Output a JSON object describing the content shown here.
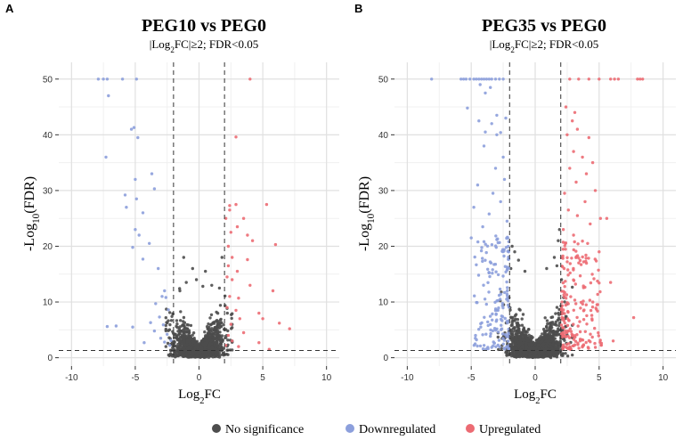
{
  "legend": {
    "items": [
      {
        "label": "No significance",
        "color": "#4d4d4d"
      },
      {
        "label": "Downregulated",
        "color": "#8c9fdc"
      },
      {
        "label": "Upregulated",
        "color": "#ec6b73"
      }
    ]
  },
  "chart_data": [
    {
      "type": "scatter",
      "panel_letter": "A",
      "title": "PEG10 vs PEG0",
      "subtitle": "|Log2FC|≥2; FDR<0.05",
      "xlabel": "Log2FC",
      "ylabel": "-Log10(FDR)",
      "xlim": [
        -11,
        11
      ],
      "ylim": [
        -1.5,
        53
      ],
      "xticks": [
        -10,
        -5,
        0,
        5,
        10
      ],
      "yticks": [
        0,
        10,
        20,
        30,
        40,
        50
      ],
      "thresholds": {
        "log2fc": [
          -2,
          2
        ],
        "neg_log10_fdr": 1.3
      },
      "grid": true,
      "series": [
        {
          "name": "Downregulated",
          "color": "#8c9fdc",
          "points": [
            [
              -7.9,
              50
            ],
            [
              -7.5,
              50
            ],
            [
              -7.2,
              50
            ],
            [
              -6,
              50
            ],
            [
              -4.9,
              50
            ],
            [
              -7.1,
              47
            ],
            [
              -5.1,
              41.3
            ],
            [
              -5.3,
              41
            ],
            [
              -4.8,
              39.5
            ],
            [
              -7.3,
              36
            ],
            [
              -3.7,
              33
            ],
            [
              -5,
              32
            ],
            [
              -3.5,
              30.3
            ],
            [
              -5.8,
              29.2
            ],
            [
              -4.9,
              28.5
            ],
            [
              -5.7,
              27
            ],
            [
              -4.4,
              26
            ],
            [
              -5,
              23
            ],
            [
              -4.7,
              22
            ],
            [
              -3.9,
              20.5
            ],
            [
              -5.2,
              19.8
            ],
            [
              -4.4,
              17.7
            ],
            [
              -3.2,
              16
            ],
            [
              -2.7,
              12
            ],
            [
              -2.9,
              11
            ],
            [
              -2.6,
              10.8
            ],
            [
              -3.4,
              9.7
            ],
            [
              -2.4,
              8.6
            ],
            [
              -3.1,
              7.3
            ],
            [
              -3.8,
              6.3
            ],
            [
              -2.8,
              5.9
            ],
            [
              -5.2,
              5.5
            ],
            [
              -7.2,
              5.6
            ],
            [
              -6.5,
              5.7
            ],
            [
              -3.5,
              4.8
            ],
            [
              -2.5,
              4.2
            ],
            [
              -3,
              3.5
            ],
            [
              -2.2,
              3.1
            ],
            [
              -2.7,
              2.8
            ],
            [
              -4.3,
              2.7
            ],
            [
              -2.3,
              2.2
            ]
          ]
        },
        {
          "name": "Upregulated",
          "color": "#ec6b73",
          "points": [
            [
              4,
              50
            ],
            [
              2.9,
              39.6
            ],
            [
              2.4,
              27.3
            ],
            [
              2.9,
              27.5
            ],
            [
              2.4,
              26.5
            ],
            [
              5.3,
              27.5
            ],
            [
              3.5,
              25
            ],
            [
              2.1,
              25
            ],
            [
              3,
              23.5
            ],
            [
              2.5,
              22.5
            ],
            [
              3.8,
              22
            ],
            [
              4.2,
              21
            ],
            [
              6,
              20.3
            ],
            [
              2.3,
              20
            ],
            [
              2.6,
              18
            ],
            [
              3.8,
              17.6
            ],
            [
              2.3,
              16.5
            ],
            [
              3,
              15.5
            ],
            [
              2.2,
              14.5
            ],
            [
              2.6,
              14
            ],
            [
              4,
              13
            ],
            [
              5.8,
              12
            ],
            [
              3.1,
              10.7
            ],
            [
              2.4,
              11
            ],
            [
              2.9,
              8.5
            ],
            [
              2.2,
              9
            ],
            [
              4.7,
              8
            ],
            [
              3.2,
              7
            ],
            [
              5,
              7
            ],
            [
              2.5,
              6
            ],
            [
              6.3,
              6.2
            ],
            [
              7.1,
              5.2
            ],
            [
              3.5,
              4.5
            ],
            [
              2.3,
              4
            ],
            [
              2.6,
              3
            ],
            [
              4.7,
              2.7
            ],
            [
              2.1,
              2.2
            ],
            [
              3.1,
              2
            ],
            [
              5.5,
              1.5
            ]
          ]
        }
      ],
      "no_significance": {
        "name": "No significance",
        "color": "#4d4d4d",
        "n_points": 1600,
        "x_range": [
          -2.6,
          2.6
        ],
        "y_range": [
          0,
          14
        ],
        "extra_points": [
          [
            -1.2,
            18
          ],
          [
            1.8,
            18
          ],
          [
            -0.5,
            16
          ],
          [
            0.5,
            15.5
          ],
          [
            -1,
            13.5
          ],
          [
            1,
            13
          ],
          [
            -1.5,
            12
          ],
          [
            1.6,
            12.5
          ],
          [
            0.3,
            12.8
          ],
          [
            -0.2,
            14
          ]
        ]
      }
    },
    {
      "type": "scatter",
      "panel_letter": "B",
      "title": "PEG35 vs PEG0",
      "subtitle": "|Log2FC|≥2; FDR<0.05",
      "xlabel": "Log2FC",
      "ylabel": "-Log10(FDR)",
      "xlim": [
        -11,
        11
      ],
      "ylim": [
        -1.5,
        53
      ],
      "xticks": [
        -10,
        -5,
        0,
        5,
        10
      ],
      "yticks": [
        0,
        10,
        20,
        30,
        40,
        50
      ],
      "thresholds": {
        "log2fc": [
          -2,
          2
        ],
        "neg_log10_fdr": 1.3
      },
      "grid": true,
      "series": [
        {
          "name": "Downregulated",
          "color": "#8c9fdc",
          "points": [
            [
              -8.1,
              50
            ],
            [
              -5.8,
              50
            ],
            [
              -5.6,
              50
            ],
            [
              -5.4,
              50
            ],
            [
              -5.1,
              50
            ],
            [
              -4.8,
              50
            ],
            [
              -4.6,
              50
            ],
            [
              -4.4,
              50
            ],
            [
              -4.2,
              50
            ],
            [
              -4,
              50
            ],
            [
              -3.8,
              50
            ],
            [
              -3.6,
              50
            ],
            [
              -3.4,
              50
            ],
            [
              -3.1,
              50
            ],
            [
              -2.8,
              50
            ],
            [
              -2.5,
              50
            ],
            [
              -4.3,
              49
            ],
            [
              -3.5,
              48.5
            ],
            [
              -3.9,
              47.5
            ],
            [
              -5.3,
              44.8
            ],
            [
              -3,
              43.5
            ],
            [
              -4.4,
              42.5
            ],
            [
              -3.4,
              42
            ],
            [
              -2.3,
              43
            ],
            [
              -3.9,
              40.5
            ],
            [
              -3,
              40
            ],
            [
              -2.7,
              40.4
            ],
            [
              -4,
              38
            ],
            [
              -2.5,
              36
            ],
            [
              -3.1,
              34
            ],
            [
              -4.5,
              31
            ],
            [
              -2.4,
              32
            ],
            [
              -3.3,
              29.5
            ],
            [
              -2.7,
              28
            ],
            [
              -4.8,
              27
            ],
            [
              -3.6,
              25.8
            ],
            [
              -2.2,
              24.5
            ],
            [
              -4.1,
              23.5
            ],
            [
              -5,
              21.5
            ],
            [
              -3,
              21.2
            ]
          ],
          "cluster": {
            "n_points": 170,
            "x_range": [
              -4.8,
              -2.05
            ],
            "y_range": [
              1.5,
              22
            ]
          }
        },
        {
          "name": "Upregulated",
          "color": "#ec6b73",
          "points": [
            [
              2.7,
              50
            ],
            [
              3.4,
              50
            ],
            [
              4.2,
              50
            ],
            [
              5,
              50
            ],
            [
              5.9,
              50
            ],
            [
              6.2,
              50
            ],
            [
              6.5,
              50
            ],
            [
              8,
              50
            ],
            [
              8.2,
              50
            ],
            [
              8.4,
              50
            ],
            [
              2.4,
              45
            ],
            [
              3.1,
              44
            ],
            [
              2.9,
              42.5
            ],
            [
              3.3,
              41
            ],
            [
              2.5,
              40
            ],
            [
              4.2,
              39.5
            ],
            [
              3,
              37
            ],
            [
              3.7,
              36
            ],
            [
              4.5,
              35
            ],
            [
              2.7,
              34
            ],
            [
              4,
              33
            ],
            [
              3.2,
              31.5
            ],
            [
              4.7,
              30
            ],
            [
              2.3,
              29.5
            ],
            [
              3.9,
              28
            ],
            [
              2.6,
              26.5
            ],
            [
              3.3,
              25.5
            ],
            [
              5.1,
              25
            ],
            [
              5.6,
              25
            ],
            [
              4.3,
              24
            ],
            [
              2.2,
              23
            ],
            [
              3,
              22
            ],
            [
              4.1,
              20.5
            ],
            [
              5,
              19
            ],
            [
              7.7,
              7.2
            ],
            [
              5.9,
              13.5
            ],
            [
              6.1,
              3
            ]
          ],
          "cluster": {
            "n_points": 200,
            "x_range": [
              2.05,
              5.2
            ],
            "y_range": [
              1.5,
              21
            ]
          }
        }
      ],
      "no_significance": {
        "name": "No significance",
        "color": "#4d4d4d",
        "n_points": 2200,
        "x_range": [
          -2.9,
          2.9
        ],
        "y_range": [
          0,
          14
        ],
        "extra_points": [
          [
            -1.8,
            20
          ],
          [
            -1.6,
            19
          ],
          [
            1.9,
            23
          ],
          [
            1.8,
            21
          ],
          [
            -1.3,
            17.5
          ],
          [
            1.5,
            18
          ],
          [
            -0.8,
            15.5
          ],
          [
            0.9,
            16
          ],
          [
            1.7,
            16.5
          ],
          [
            -1.9,
            16
          ]
        ]
      }
    }
  ]
}
